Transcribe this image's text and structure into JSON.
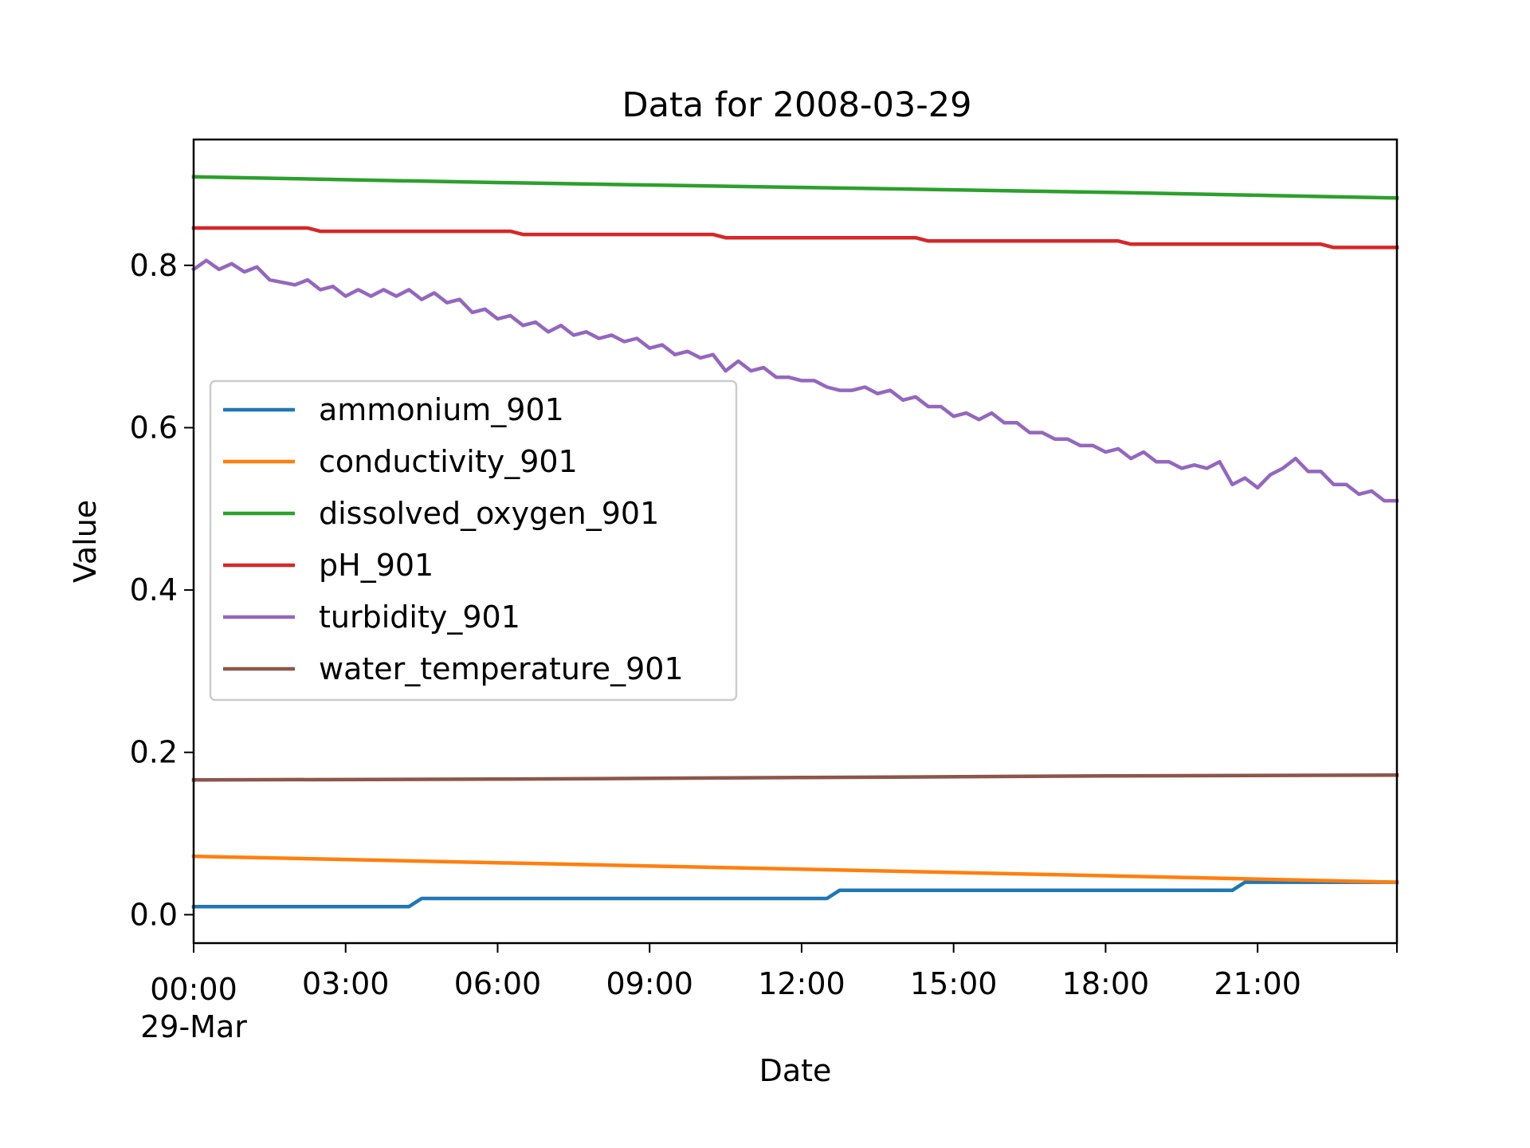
{
  "chart_data": {
    "type": "line",
    "title": "Data for 2008-03-29",
    "xlabel": "Date",
    "ylabel": "Value",
    "x_axis": "time",
    "x_ticks": [
      {
        "time": "00:00",
        "label": "00:00",
        "sublabel": "29-Mar"
      },
      {
        "time": "03:00",
        "label": "03:00"
      },
      {
        "time": "06:00",
        "label": "06:00"
      },
      {
        "time": "09:00",
        "label": "09:00"
      },
      {
        "time": "12:00",
        "label": "12:00"
      },
      {
        "time": "15:00",
        "label": "15:00"
      },
      {
        "time": "18:00",
        "label": "18:00"
      },
      {
        "time": "21:00",
        "label": "21:00"
      }
    ],
    "xlim": [
      "2008-03-29 00:00",
      "2008-03-29 23:45"
    ],
    "ylim": [
      -0.035,
      0.955
    ],
    "y_ticks": [
      0.0,
      0.2,
      0.4,
      0.6,
      0.8
    ],
    "y_tick_labels": [
      "0.0",
      "0.2",
      "0.4",
      "0.6",
      "0.8"
    ],
    "grid": false,
    "legend": {
      "placement": "center-left"
    },
    "series": [
      {
        "name": "ammonium_901",
        "color": "#1f77b4",
        "points": [
          [
            "00:00",
            0.01
          ],
          [
            "04:15",
            0.01
          ],
          [
            "04:30",
            0.02
          ],
          [
            "12:30",
            0.02
          ],
          [
            "12:45",
            0.03
          ],
          [
            "20:30",
            0.03
          ],
          [
            "20:45",
            0.04
          ],
          [
            "23:45",
            0.04
          ]
        ]
      },
      {
        "name": "conductivity_901",
        "color": "#ff7f0e",
        "points": [
          [
            "00:00",
            0.072
          ],
          [
            "06:00",
            0.064
          ],
          [
            "12:00",
            0.056
          ],
          [
            "18:00",
            0.048
          ],
          [
            "23:45",
            0.04
          ]
        ]
      },
      {
        "name": "dissolved_oxygen_901",
        "color": "#2ca02c",
        "points": [
          [
            "00:00",
            0.909
          ],
          [
            "06:00",
            0.902
          ],
          [
            "12:00",
            0.896
          ],
          [
            "18:00",
            0.89
          ],
          [
            "23:45",
            0.883
          ]
        ]
      },
      {
        "name": "pH_901",
        "color": "#d62728",
        "points": [
          [
            "00:00",
            0.846
          ],
          [
            "02:15",
            0.846
          ],
          [
            "02:30",
            0.842
          ],
          [
            "06:15",
            0.842
          ],
          [
            "06:30",
            0.838
          ],
          [
            "10:15",
            0.838
          ],
          [
            "10:30",
            0.834
          ],
          [
            "14:15",
            0.834
          ],
          [
            "14:30",
            0.83
          ],
          [
            "18:15",
            0.83
          ],
          [
            "18:30",
            0.826
          ],
          [
            "22:15",
            0.826
          ],
          [
            "22:30",
            0.822
          ],
          [
            "23:45",
            0.822
          ]
        ]
      },
      {
        "name": "turbidity_901",
        "color": "#9467bd",
        "points": [
          [
            "00:00",
            0.795
          ],
          [
            "00:15",
            0.806
          ],
          [
            "00:30",
            0.795
          ],
          [
            "00:45",
            0.802
          ],
          [
            "01:00",
            0.792
          ],
          [
            "01:15",
            0.798
          ],
          [
            "01:30",
            0.782
          ],
          [
            "01:45",
            0.779
          ],
          [
            "02:00",
            0.776
          ],
          [
            "02:15",
            0.782
          ],
          [
            "02:30",
            0.77
          ],
          [
            "02:45",
            0.774
          ],
          [
            "03:00",
            0.762
          ],
          [
            "03:15",
            0.77
          ],
          [
            "03:30",
            0.762
          ],
          [
            "03:45",
            0.77
          ],
          [
            "04:00",
            0.762
          ],
          [
            "04:15",
            0.77
          ],
          [
            "04:30",
            0.758
          ],
          [
            "04:45",
            0.766
          ],
          [
            "05:00",
            0.754
          ],
          [
            "05:15",
            0.758
          ],
          [
            "05:30",
            0.742
          ],
          [
            "05:45",
            0.746
          ],
          [
            "06:00",
            0.734
          ],
          [
            "06:15",
            0.738
          ],
          [
            "06:30",
            0.726
          ],
          [
            "06:45",
            0.73
          ],
          [
            "07:00",
            0.718
          ],
          [
            "07:15",
            0.726
          ],
          [
            "07:30",
            0.714
          ],
          [
            "07:45",
            0.718
          ],
          [
            "08:00",
            0.71
          ],
          [
            "08:15",
            0.714
          ],
          [
            "08:30",
            0.706
          ],
          [
            "08:45",
            0.71
          ],
          [
            "09:00",
            0.698
          ],
          [
            "09:15",
            0.702
          ],
          [
            "09:30",
            0.69
          ],
          [
            "09:45",
            0.694
          ],
          [
            "10:00",
            0.686
          ],
          [
            "10:15",
            0.69
          ],
          [
            "10:30",
            0.67
          ],
          [
            "10:45",
            0.682
          ],
          [
            "11:00",
            0.67
          ],
          [
            "11:15",
            0.674
          ],
          [
            "11:30",
            0.662
          ],
          [
            "11:45",
            0.662
          ],
          [
            "12:00",
            0.658
          ],
          [
            "12:15",
            0.658
          ],
          [
            "12:30",
            0.65
          ],
          [
            "12:45",
            0.646
          ],
          [
            "13:00",
            0.646
          ],
          [
            "13:15",
            0.65
          ],
          [
            "13:30",
            0.642
          ],
          [
            "13:45",
            0.646
          ],
          [
            "14:00",
            0.634
          ],
          [
            "14:15",
            0.638
          ],
          [
            "14:30",
            0.626
          ],
          [
            "14:45",
            0.626
          ],
          [
            "15:00",
            0.614
          ],
          [
            "15:15",
            0.618
          ],
          [
            "15:30",
            0.61
          ],
          [
            "15:45",
            0.618
          ],
          [
            "16:00",
            0.606
          ],
          [
            "16:15",
            0.606
          ],
          [
            "16:30",
            0.594
          ],
          [
            "16:45",
            0.594
          ],
          [
            "17:00",
            0.586
          ],
          [
            "17:15",
            0.586
          ],
          [
            "17:30",
            0.578
          ],
          [
            "17:45",
            0.578
          ],
          [
            "18:00",
            0.57
          ],
          [
            "18:15",
            0.574
          ],
          [
            "18:30",
            0.562
          ],
          [
            "18:45",
            0.57
          ],
          [
            "19:00",
            0.558
          ],
          [
            "19:15",
            0.558
          ],
          [
            "19:30",
            0.55
          ],
          [
            "19:45",
            0.554
          ],
          [
            "20:00",
            0.55
          ],
          [
            "20:15",
            0.558
          ],
          [
            "20:30",
            0.53
          ],
          [
            "20:45",
            0.538
          ],
          [
            "21:00",
            0.526
          ],
          [
            "21:15",
            0.542
          ],
          [
            "21:30",
            0.55
          ],
          [
            "21:45",
            0.562
          ],
          [
            "22:00",
            0.546
          ],
          [
            "22:15",
            0.546
          ],
          [
            "22:30",
            0.53
          ],
          [
            "22:45",
            0.53
          ],
          [
            "23:00",
            0.518
          ],
          [
            "23:15",
            0.522
          ],
          [
            "23:30",
            0.51
          ],
          [
            "23:45",
            0.51
          ]
        ]
      },
      {
        "name": "water_temperature_901",
        "color": "#8c564b",
        "points": [
          [
            "00:00",
            0.166
          ],
          [
            "06:00",
            0.167
          ],
          [
            "12:00",
            0.169
          ],
          [
            "18:00",
            0.171
          ],
          [
            "23:45",
            0.172
          ]
        ]
      }
    ]
  }
}
